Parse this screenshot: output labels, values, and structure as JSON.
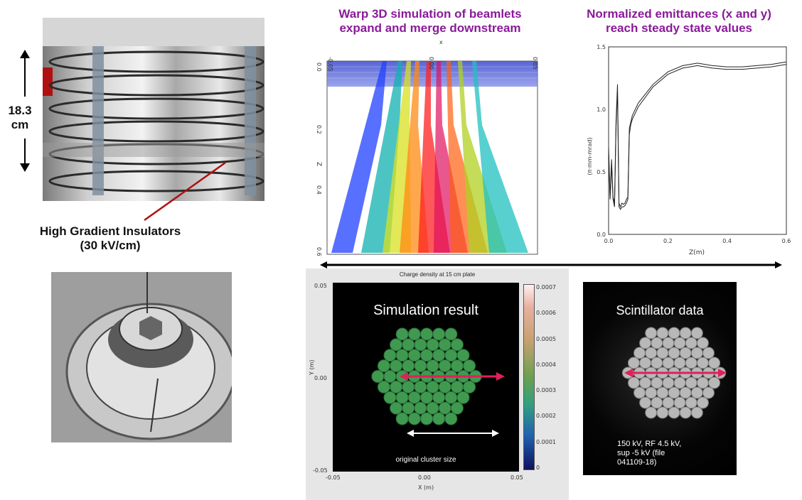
{
  "insulator_photo": {
    "height_value": "18.3",
    "height_unit": "cm",
    "caption_line1": "High Gradient Insulators",
    "caption_line2": "(30 kV/cm)"
  },
  "warp_sim": {
    "title_line1": "Warp 3D simulation of beamlets",
    "title_line2": "expand and merge downstream",
    "x_axis_label": "x",
    "z_axis_label": "Z",
    "x_ticks": [
      "-0.05",
      "0.00",
      "0.05"
    ],
    "z_ticks": [
      "0.0",
      "0.2",
      "0.4",
      "0.6"
    ]
  },
  "emittance_chart": {
    "title_line1": "Normalized emittances (x and y)",
    "title_line2": "reach steady state values",
    "ylabel": "(π·mm-mrad)",
    "xlabel": "Z(m)",
    "x_ticks": [
      "0.0",
      "0.2",
      "0.4",
      "0.6"
    ],
    "y_ticks": [
      "0.0",
      "0.5",
      "1.0",
      "1.5"
    ]
  },
  "charge_density": {
    "plot_title": "Charge density at 15 cm plate",
    "overlay_label": "Simulation result",
    "size_label": "original cluster size",
    "ylabel": "Y (m)",
    "xlabel": "X (m)",
    "x_ticks": [
      "-0.05",
      "0.00",
      "0.05"
    ],
    "y_ticks": [
      "0.05",
      "0.00",
      "-0.05"
    ],
    "colorbar_ticks": [
      "0.0007",
      "0.0006",
      "0.0005",
      "0.0004",
      "0.0003",
      "0.0002",
      "0.0001",
      "0"
    ]
  },
  "scintillator": {
    "overlay_label": "Scintillator data",
    "note_line1": "150 kV, RF 4.5 kV,",
    "note_line2": "sup -5 kV   (file",
    "note_line3": "041109-18)"
  },
  "chart_data": {
    "type": "line",
    "title": "Normalized emittances (x and y)",
    "xlabel": "Z(m)",
    "ylabel": "(π·mm-mrad)",
    "xlim": [
      0,
      0.6
    ],
    "ylim": [
      0,
      1.5
    ],
    "grid": false,
    "series": [
      {
        "x": [
          0.0,
          0.005,
          0.01,
          0.015,
          0.02,
          0.025,
          0.03,
          0.035,
          0.04,
          0.045,
          0.05,
          0.055,
          0.06,
          0.065,
          0.07,
          0.075,
          0.08,
          0.1,
          0.15,
          0.2,
          0.25,
          0.3,
          0.35,
          0.4,
          0.45,
          0.5,
          0.55,
          0.6
        ],
        "values": [
          0.7,
          0.3,
          0.6,
          0.3,
          0.25,
          0.9,
          1.2,
          0.25,
          0.22,
          0.25,
          0.24,
          0.25,
          0.28,
          0.3,
          0.85,
          0.9,
          0.95,
          1.05,
          1.2,
          1.3,
          1.35,
          1.37,
          1.35,
          1.34,
          1.34,
          1.35,
          1.36,
          1.38
        ]
      },
      {
        "x": [
          0.0,
          0.005,
          0.01,
          0.015,
          0.02,
          0.025,
          0.03,
          0.035,
          0.04,
          0.045,
          0.05,
          0.055,
          0.06,
          0.065,
          0.07,
          0.075,
          0.08,
          0.1,
          0.15,
          0.2,
          0.25,
          0.3,
          0.35,
          0.4,
          0.45,
          0.5,
          0.55,
          0.6
        ],
        "values": [
          0.65,
          0.28,
          0.55,
          0.28,
          0.22,
          0.85,
          1.15,
          0.22,
          0.2,
          0.22,
          0.22,
          0.23,
          0.25,
          0.28,
          0.8,
          0.88,
          0.92,
          1.02,
          1.18,
          1.28,
          1.33,
          1.35,
          1.33,
          1.32,
          1.32,
          1.33,
          1.34,
          1.36
        ]
      }
    ]
  },
  "colors": {
    "title_purple": "#8a1a9a",
    "arrow_pink": "#e0205a",
    "beam_green": "#3f9a50"
  }
}
